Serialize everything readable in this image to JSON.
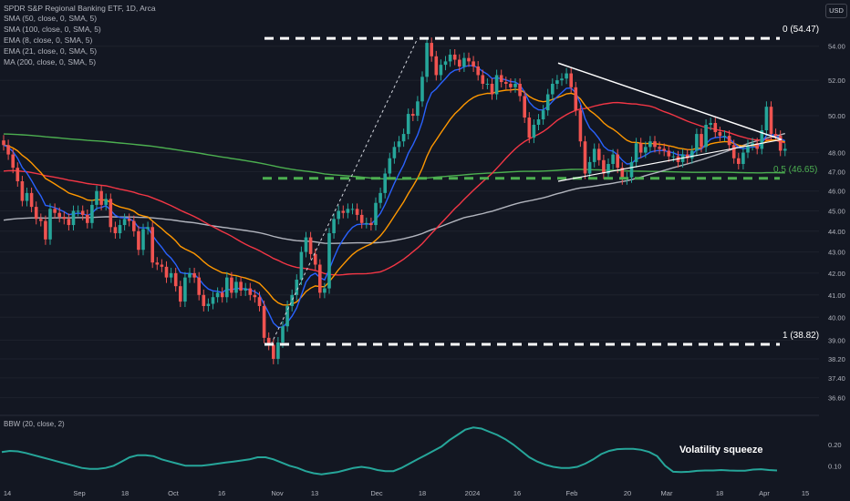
{
  "header": {
    "title": "SPDR S&P Regional Banking ETF, 1D, Arca",
    "indicators": [
      "SMA (50, close, 0, SMA, 5)",
      "SMA (100, close, 0, SMA, 5)",
      "EMA (8, close, 0, SMA, 5)",
      "EMA (21, close, 0, SMA, 5)",
      "MA (200, close, 0, SMA, 5)"
    ],
    "currency": "USD"
  },
  "lower_pane": {
    "label": "BBW (20, close, 2)",
    "annotation": "Volatility squeeze"
  },
  "colors": {
    "background": "#131722",
    "up": "#26a69a",
    "down": "#ef5350",
    "ema8": "#2962ff",
    "ema21": "#ff9800",
    "sma50": "#f23645",
    "sma100": "#b2b5be",
    "ma200": "#4caf50",
    "fib_mid": "#4caf50",
    "bbw": "#26a69a"
  },
  "chart_data": [
    {
      "type": "candlestick",
      "title": "SPDR S&P Regional Banking ETF, 1D, Arca",
      "x_ticks": [
        "14",
        "Sep",
        "18",
        "Oct",
        "16",
        "Nov",
        "13",
        "Dec",
        "18",
        "2024",
        "16",
        "Feb",
        "20",
        "Mar",
        "18",
        "Apr",
        "15"
      ],
      "y_ticks": [
        36.6,
        37.4,
        38.2,
        39.0,
        40.0,
        41.0,
        42.0,
        43.0,
        44.0,
        45.0,
        46.0,
        47.0,
        48.0,
        50.0,
        52.0,
        54.0
      ],
      "y_scale": "log",
      "ylim": [
        36.1,
        55.7
      ],
      "close": [
        48.4,
        47.9,
        47.2,
        46.5,
        45.5,
        45.9,
        45.2,
        44.6,
        44.5,
        43.6,
        45.1,
        44.9,
        44.7,
        44.6,
        44.3,
        45.0,
        45.0,
        44.8,
        44.4,
        45.3,
        46.0,
        45.3,
        45.6,
        44.2,
        43.9,
        44.3,
        44.6,
        44.5,
        44.0,
        43.1,
        44.1,
        44.2,
        42.5,
        42.4,
        42.3,
        41.8,
        42.0,
        41.4,
        40.7,
        41.8,
        42.0,
        41.8,
        41.0,
        40.5,
        40.6,
        40.9,
        41.1,
        40.9,
        41.8,
        41.1,
        41.6,
        41.2,
        41.3,
        41.0,
        40.9,
        40.5,
        39.1,
        38.8,
        38.2,
        38.9,
        39.6,
        40.5,
        41.0,
        41.7,
        43.0,
        43.7,
        42.9,
        42.4,
        41.1,
        41.3,
        43.9,
        44.6,
        45.0,
        44.9,
        45.1,
        45.1,
        44.8,
        44.4,
        44.4,
        44.3,
        45.4,
        45.9,
        46.9,
        47.7,
        48.3,
        48.6,
        49.0,
        50.1,
        50.0,
        50.8,
        52.2,
        54.2,
        53.4,
        52.3,
        52.9,
        53.1,
        53.5,
        53.2,
        52.8,
        53.3,
        53.1,
        52.8,
        52.3,
        51.8,
        51.8,
        51.2,
        52.3,
        51.9,
        51.8,
        51.6,
        51.8,
        51.1,
        49.9,
        48.8,
        49.5,
        49.8,
        50.3,
        51.2,
        51.8,
        52.0,
        52.1,
        52.4,
        51.6,
        50.3,
        48.6,
        46.9,
        47.5,
        48.2,
        47.6,
        46.9,
        47.4,
        47.9,
        47.2,
        46.6,
        46.7,
        47.5,
        48.5,
        48.0,
        48.3,
        48.6,
        48.3,
        48.2,
        48.1,
        47.8,
        47.8,
        47.5,
        47.9,
        47.7,
        48.1,
        49.0,
        48.3,
        49.5,
        49.6,
        49.1,
        48.9,
        48.9,
        48.4,
        47.7,
        47.4,
        48.0,
        48.4,
        48.5,
        48.2,
        49.2,
        50.5,
        49.0,
        48.9,
        48.1,
        48.2
      ],
      "ema8_end": 48.8,
      "ema21_end": 48.6,
      "sma50_end": 48.9,
      "sma100_end": 48.8,
      "ma200_end": 46.0,
      "fib_levels": [
        {
          "label": "0 (54.47)",
          "value": 54.47
        },
        {
          "label": "0.5 (46.65)",
          "value": 46.65
        },
        {
          "label": "1 (38.82)",
          "value": 38.82
        }
      ]
    },
    {
      "type": "line",
      "title": "BBW (20, close, 2)",
      "y_ticks": [
        0.1,
        0.2
      ],
      "ylim": [
        0.02,
        0.32
      ],
      "values": [
        0.165,
        0.17,
        0.168,
        0.16,
        0.15,
        0.14,
        0.13,
        0.12,
        0.11,
        0.1,
        0.09,
        0.085,
        0.085,
        0.09,
        0.1,
        0.12,
        0.14,
        0.15,
        0.15,
        0.145,
        0.13,
        0.12,
        0.11,
        0.1,
        0.1,
        0.1,
        0.105,
        0.11,
        0.115,
        0.12,
        0.125,
        0.13,
        0.14,
        0.14,
        0.13,
        0.115,
        0.1,
        0.09,
        0.075,
        0.065,
        0.06,
        0.065,
        0.07,
        0.08,
        0.09,
        0.095,
        0.09,
        0.08,
        0.075,
        0.075,
        0.09,
        0.11,
        0.13,
        0.15,
        0.17,
        0.19,
        0.22,
        0.245,
        0.27,
        0.28,
        0.275,
        0.26,
        0.245,
        0.225,
        0.2,
        0.17,
        0.14,
        0.12,
        0.105,
        0.095,
        0.09,
        0.09,
        0.095,
        0.11,
        0.13,
        0.155,
        0.17,
        0.178,
        0.18,
        0.18,
        0.175,
        0.165,
        0.145,
        0.1,
        0.072,
        0.07,
        0.072,
        0.076,
        0.078,
        0.078,
        0.08,
        0.078,
        0.077,
        0.077,
        0.082,
        0.084,
        0.08,
        0.078
      ]
    }
  ]
}
